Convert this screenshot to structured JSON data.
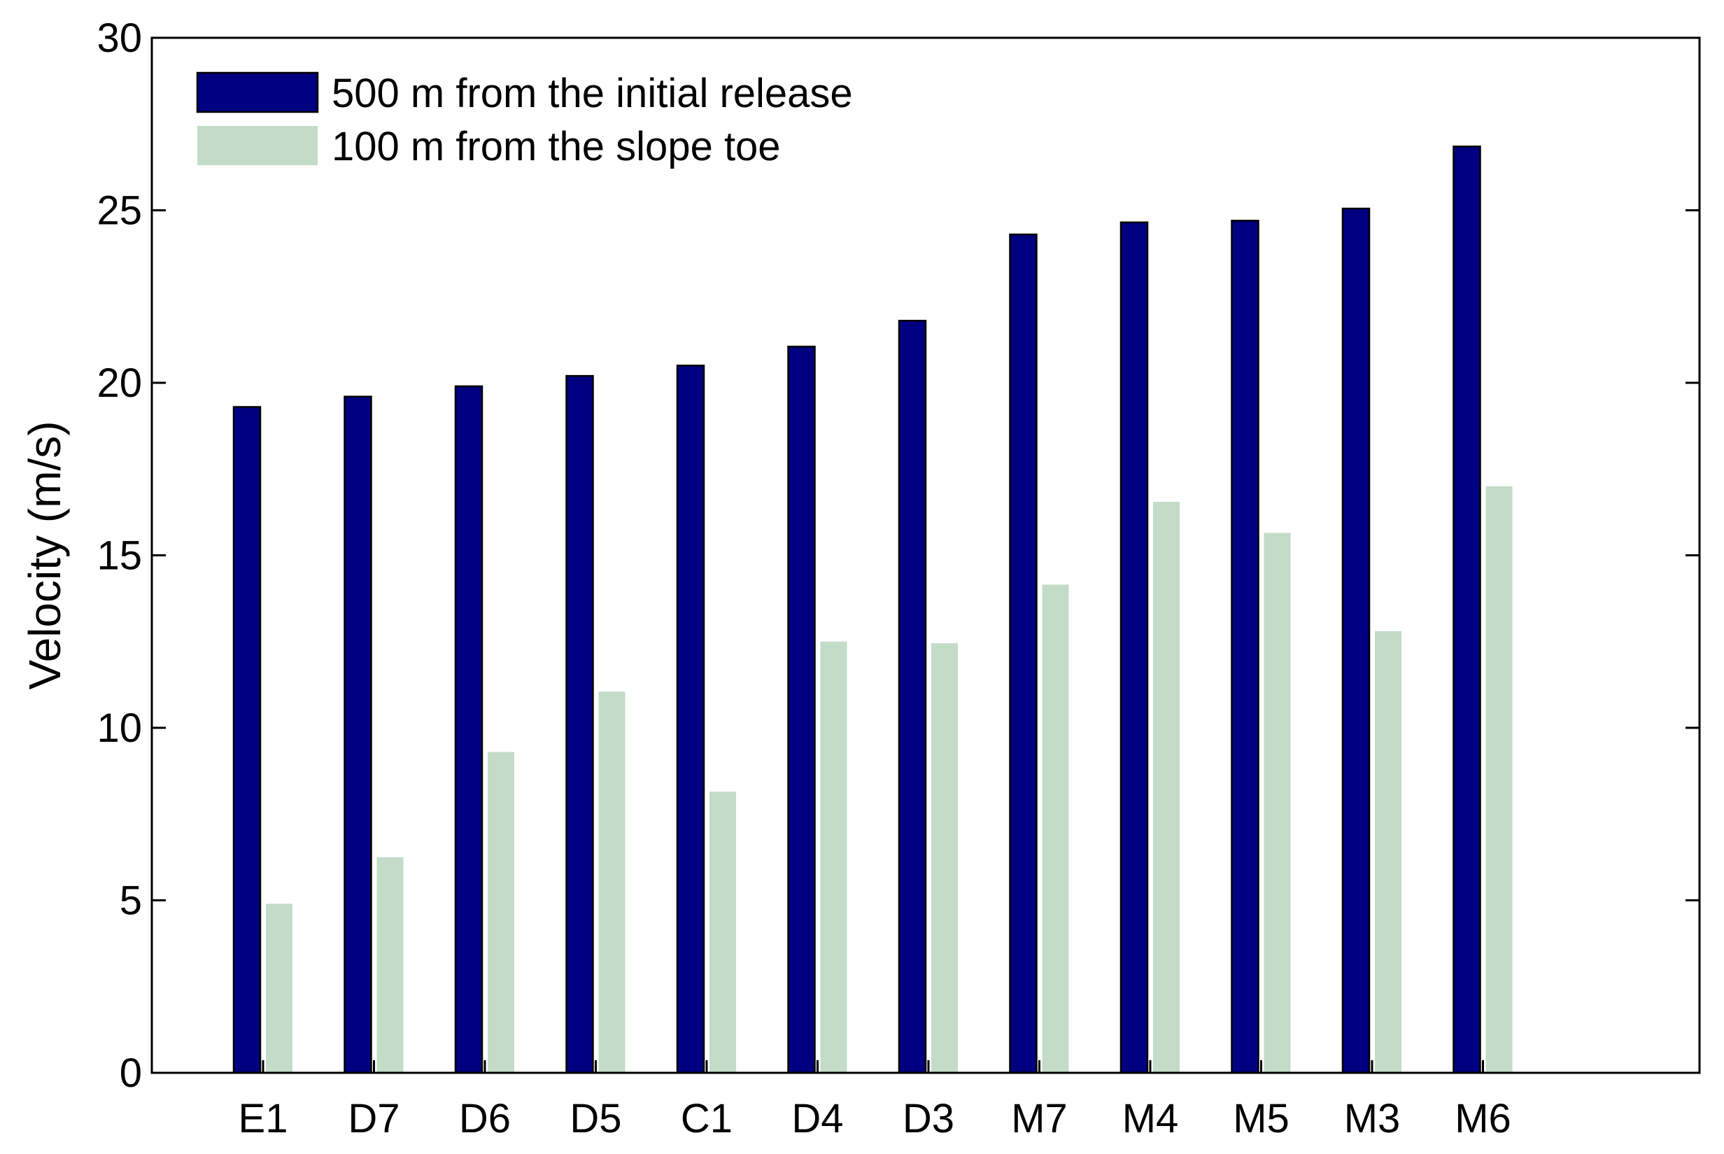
{
  "chart_data": {
    "type": "bar",
    "title": "",
    "xlabel": "",
    "ylabel": "Velocity (m/s)",
    "ylim": [
      0,
      30
    ],
    "yticks": [
      0,
      5,
      10,
      15,
      20,
      25,
      30
    ],
    "grid": false,
    "legend_position": "top-left",
    "categories": [
      "E1",
      "D7",
      "D6",
      "D5",
      "C1",
      "D4",
      "D3",
      "M7",
      "M4",
      "M5",
      "M3",
      "M6"
    ],
    "series": [
      {
        "name": "500 m from the initial release",
        "color": "#000080",
        "values": [
          19.3,
          19.6,
          19.9,
          20.2,
          20.5,
          21.05,
          21.8,
          24.3,
          24.65,
          24.7,
          25.05,
          26.85
        ]
      },
      {
        "name": "100 m from the slope toe",
        "color": "#c2dcc8",
        "values": [
          4.9,
          6.25,
          9.3,
          11.05,
          8.15,
          12.5,
          12.45,
          14.15,
          16.55,
          15.65,
          12.8,
          17.0
        ]
      }
    ]
  }
}
